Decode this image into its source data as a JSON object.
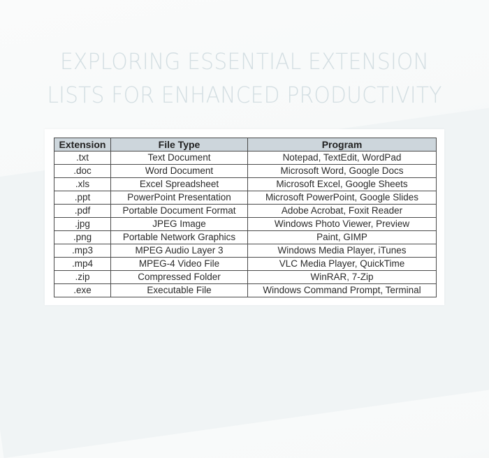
{
  "title": {
    "line1": "EXPLORING ESSENTIAL EXTENSION",
    "line2": "LISTS FOR ENHANCED PRODUCTIVITY"
  },
  "table": {
    "headers": [
      "Extension",
      "File Type",
      "Program"
    ],
    "rows": [
      [
        ".txt",
        "Text Document",
        "Notepad, TextEdit, WordPad"
      ],
      [
        ".doc",
        "Word Document",
        "Microsoft Word, Google Docs"
      ],
      [
        ".xls",
        "Excel Spreadsheet",
        "Microsoft Excel, Google Sheets"
      ],
      [
        ".ppt",
        "PowerPoint Presentation",
        "Microsoft PowerPoint, Google Slides"
      ],
      [
        ".pdf",
        "Portable Document Format",
        "Adobe Acrobat, Foxit Reader"
      ],
      [
        ".jpg",
        "JPEG Image",
        "Windows Photo Viewer, Preview"
      ],
      [
        ".png",
        "Portable Network Graphics",
        "Paint, GIMP"
      ],
      [
        ".mp3",
        "MPEG Audio Layer 3",
        "Windows Media Player, iTunes"
      ],
      [
        ".mp4",
        "MPEG-4 Video File",
        "VLC Media Player, QuickTime"
      ],
      [
        ".zip",
        "Compressed Folder",
        "WinRAR, 7-Zip"
      ],
      [
        ".exe",
        "Executable File",
        "Windows Command Prompt, Terminal"
      ]
    ]
  },
  "colors": {
    "title": "#d3dee2",
    "header_bg": "#cdd6dc",
    "border": "#4a4a4a",
    "card_bg": "#ffffff"
  }
}
